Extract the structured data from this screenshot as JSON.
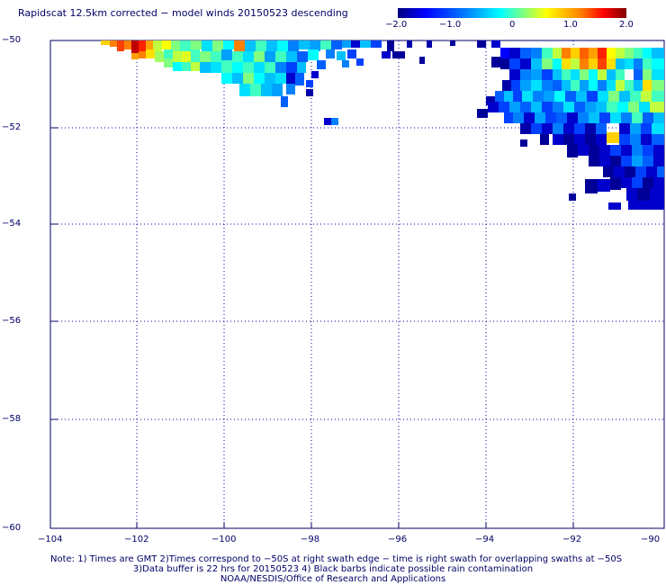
{
  "title": "Rapidscat 12.5km corrected − model winds 20150523 descending",
  "colorbar": {
    "ticks": [
      "−2.0",
      "−1.0",
      "0",
      "1.0",
      "2.0"
    ],
    "stops": [
      "#00007f",
      "#0000ff",
      "#0080ff",
      "#00ffff",
      "#7fff7f",
      "#ffff00",
      "#ff8000",
      "#ff0000",
      "#7f0000"
    ]
  },
  "axes": {
    "lat_labels": [
      "−50",
      "−52",
      "−54",
      "−56",
      "−58",
      "−60"
    ],
    "lon_labels": [
      "−104",
      "−102",
      "−100",
      "−98",
      "−96",
      "−94",
      "−92",
      "−90"
    ],
    "grid_color": "#0000aa"
  },
  "notes": {
    "line1": "Note: 1) Times are GMT 2)Times correspond to −50S at right swath edge − time is right swath for overlapping swaths at −50S",
    "line2": "3)Data buffer is 22 hrs for 20150523 4) Black barbs indicate possible rain contamination",
    "line3": "NOAA/NESDIS/Office of Research and Applications"
  }
}
